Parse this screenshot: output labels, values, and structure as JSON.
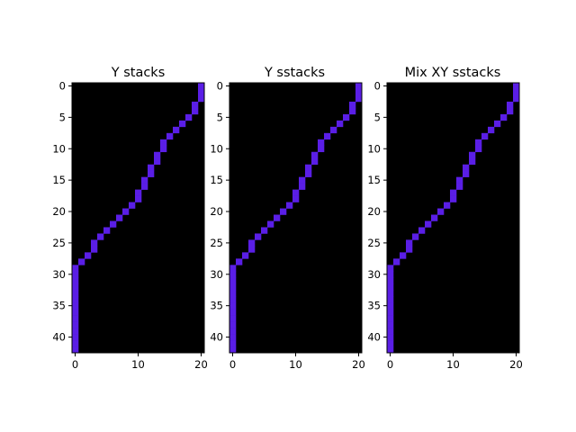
{
  "chart_data": [
    {
      "type": "heatmap",
      "title": "Y stacks",
      "grid": false,
      "xlim": [
        -0.5,
        20.5
      ],
      "ylim": [
        42.5,
        -0.5
      ],
      "xticks": [
        0,
        10,
        20
      ],
      "yticks": [
        0,
        5,
        10,
        15,
        20,
        25,
        30,
        35,
        40
      ],
      "background_color": "#000000",
      "cell_color": "#5a1ee6",
      "filled_cells": [
        [
          20,
          0
        ],
        [
          20,
          1
        ],
        [
          20,
          2
        ],
        [
          19,
          3
        ],
        [
          19,
          4
        ],
        [
          18,
          5
        ],
        [
          17,
          6
        ],
        [
          16,
          7
        ],
        [
          15,
          8
        ],
        [
          14,
          9
        ],
        [
          14,
          10
        ],
        [
          13,
          11
        ],
        [
          13,
          12
        ],
        [
          12,
          13
        ],
        [
          12,
          14
        ],
        [
          11,
          15
        ],
        [
          11,
          16
        ],
        [
          10,
          17
        ],
        [
          10,
          18
        ],
        [
          9,
          19
        ],
        [
          8,
          20
        ],
        [
          7,
          21
        ],
        [
          6,
          22
        ],
        [
          5,
          23
        ],
        [
          4,
          24
        ],
        [
          3,
          25
        ],
        [
          3,
          26
        ],
        [
          2,
          27
        ],
        [
          1,
          28
        ],
        [
          0,
          29
        ],
        [
          0,
          30
        ],
        [
          0,
          31
        ],
        [
          0,
          32
        ],
        [
          0,
          33
        ],
        [
          0,
          34
        ],
        [
          0,
          35
        ],
        [
          0,
          36
        ],
        [
          0,
          37
        ],
        [
          0,
          38
        ],
        [
          0,
          39
        ],
        [
          0,
          40
        ],
        [
          0,
          41
        ],
        [
          0,
          42
        ]
      ]
    },
    {
      "type": "heatmap",
      "title": "Y sstacks",
      "grid": false,
      "xlim": [
        -0.5,
        20.5
      ],
      "ylim": [
        42.5,
        -0.5
      ],
      "xticks": [
        0,
        10,
        20
      ],
      "yticks": [
        0,
        5,
        10,
        15,
        20,
        25,
        30,
        35,
        40
      ],
      "background_color": "#000000",
      "cell_color": "#5a1ee6",
      "filled_cells": [
        [
          20,
          0
        ],
        [
          20,
          1
        ],
        [
          20,
          2
        ],
        [
          19,
          3
        ],
        [
          19,
          4
        ],
        [
          18,
          5
        ],
        [
          17,
          6
        ],
        [
          16,
          7
        ],
        [
          15,
          8
        ],
        [
          14,
          9
        ],
        [
          14,
          10
        ],
        [
          13,
          11
        ],
        [
          13,
          12
        ],
        [
          12,
          13
        ],
        [
          12,
          14
        ],
        [
          11,
          15
        ],
        [
          11,
          16
        ],
        [
          10,
          17
        ],
        [
          10,
          18
        ],
        [
          9,
          19
        ],
        [
          8,
          20
        ],
        [
          7,
          21
        ],
        [
          6,
          22
        ],
        [
          5,
          23
        ],
        [
          4,
          24
        ],
        [
          3,
          25
        ],
        [
          3,
          26
        ],
        [
          2,
          27
        ],
        [
          1,
          28
        ],
        [
          0,
          29
        ],
        [
          0,
          30
        ],
        [
          0,
          31
        ],
        [
          0,
          32
        ],
        [
          0,
          33
        ],
        [
          0,
          34
        ],
        [
          0,
          35
        ],
        [
          0,
          36
        ],
        [
          0,
          37
        ],
        [
          0,
          38
        ],
        [
          0,
          39
        ],
        [
          0,
          40
        ],
        [
          0,
          41
        ],
        [
          0,
          42
        ]
      ]
    },
    {
      "type": "heatmap",
      "title": "Mix XY sstacks",
      "grid": false,
      "xlim": [
        -0.5,
        20.5
      ],
      "ylim": [
        42.5,
        -0.5
      ],
      "xticks": [
        0,
        10,
        20
      ],
      "yticks": [
        0,
        5,
        10,
        15,
        20,
        25,
        30,
        35,
        40
      ],
      "background_color": "#000000",
      "cell_color": "#5a1ee6",
      "filled_cells": [
        [
          20,
          0
        ],
        [
          20,
          1
        ],
        [
          20,
          2
        ],
        [
          19,
          3
        ],
        [
          19,
          4
        ],
        [
          18,
          5
        ],
        [
          17,
          6
        ],
        [
          16,
          7
        ],
        [
          15,
          8
        ],
        [
          14,
          9
        ],
        [
          14,
          10
        ],
        [
          13,
          11
        ],
        [
          13,
          12
        ],
        [
          12,
          13
        ],
        [
          12,
          14
        ],
        [
          11,
          15
        ],
        [
          11,
          16
        ],
        [
          10,
          17
        ],
        [
          10,
          18
        ],
        [
          9,
          19
        ],
        [
          8,
          20
        ],
        [
          7,
          21
        ],
        [
          6,
          22
        ],
        [
          5,
          23
        ],
        [
          4,
          24
        ],
        [
          3,
          25
        ],
        [
          3,
          26
        ],
        [
          2,
          27
        ],
        [
          1,
          28
        ],
        [
          0,
          29
        ],
        [
          0,
          30
        ],
        [
          0,
          31
        ],
        [
          0,
          32
        ],
        [
          0,
          33
        ],
        [
          0,
          34
        ],
        [
          0,
          35
        ],
        [
          0,
          36
        ],
        [
          0,
          37
        ],
        [
          0,
          38
        ],
        [
          0,
          39
        ],
        [
          0,
          40
        ],
        [
          0,
          41
        ],
        [
          0,
          42
        ]
      ]
    }
  ]
}
